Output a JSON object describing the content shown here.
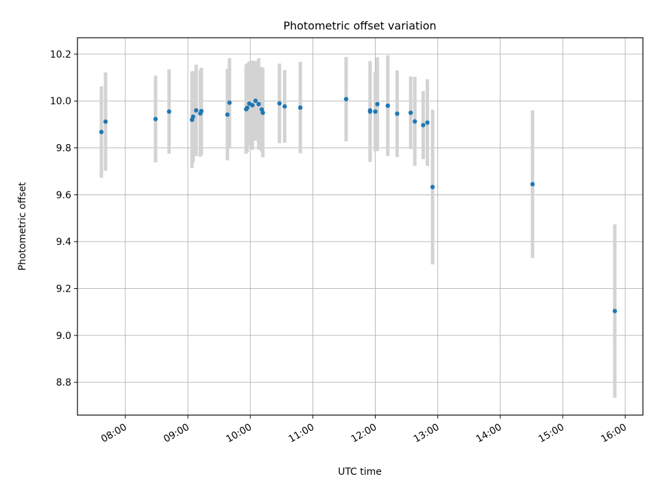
{
  "chart_data": {
    "type": "scatter",
    "title": "Photometric offset variation",
    "xlabel": "UTC time",
    "ylabel": "Photometric offset",
    "x_is_time": true,
    "xlim": [
      "07:14",
      "16:17"
    ],
    "ylim": [
      8.66,
      10.27
    ],
    "x_ticks": [
      "08:00",
      "09:00",
      "10:00",
      "11:00",
      "12:00",
      "13:00",
      "14:00",
      "15:00",
      "16:00"
    ],
    "y_ticks": [
      "8.8",
      "9.0",
      "9.2",
      "9.4",
      "9.6",
      "9.8",
      "10.0",
      "10.2"
    ],
    "grid": true,
    "marker_color": "#1f77b4",
    "errorbar_color": "#d3d3d3",
    "points": [
      {
        "time": "07:37",
        "y": 9.868,
        "err": 0.195
      },
      {
        "time": "07:41",
        "y": 9.912,
        "err": 0.21
      },
      {
        "time": "08:29",
        "y": 9.923,
        "err": 0.185
      },
      {
        "time": "08:42",
        "y": 9.955,
        "err": 0.18
      },
      {
        "time": "09:04",
        "y": 9.92,
        "err": 0.205
      },
      {
        "time": "09:05",
        "y": 9.933,
        "err": 0.195
      },
      {
        "time": "09:08",
        "y": 9.96,
        "err": 0.195
      },
      {
        "time": "09:12",
        "y": 9.947,
        "err": 0.185
      },
      {
        "time": "09:13",
        "y": 9.957,
        "err": 0.185
      },
      {
        "time": "09:38",
        "y": 9.942,
        "err": 0.195
      },
      {
        "time": "09:40",
        "y": 9.993,
        "err": 0.19
      },
      {
        "time": "09:56",
        "y": 9.965,
        "err": 0.19
      },
      {
        "time": "09:57",
        "y": 9.971,
        "err": 0.19
      },
      {
        "time": "09:59",
        "y": 9.989,
        "err": 0.18
      },
      {
        "time": "10:02",
        "y": 9.982,
        "err": 0.19
      },
      {
        "time": "10:05",
        "y": 10.001,
        "err": 0.17
      },
      {
        "time": "10:08",
        "y": 9.987,
        "err": 0.195
      },
      {
        "time": "10:11",
        "y": 9.964,
        "err": 0.18
      },
      {
        "time": "10:12",
        "y": 9.95,
        "err": 0.19
      },
      {
        "time": "10:28",
        "y": 9.99,
        "err": 0.17
      },
      {
        "time": "10:33",
        "y": 9.977,
        "err": 0.155
      },
      {
        "time": "10:48",
        "y": 9.972,
        "err": 0.195
      },
      {
        "time": "11:32",
        "y": 10.008,
        "err": 0.18
      },
      {
        "time": "11:55",
        "y": 9.955,
        "err": 0.215
      },
      {
        "time": "11:55",
        "y": 9.96,
        "err": 0.2
      },
      {
        "time": "12:00",
        "y": 9.955,
        "err": 0.17
      },
      {
        "time": "12:02",
        "y": 9.987,
        "err": 0.2
      },
      {
        "time": "12:12",
        "y": 9.98,
        "err": 0.215
      },
      {
        "time": "12:21",
        "y": 9.946,
        "err": 0.185
      },
      {
        "time": "12:34",
        "y": 9.95,
        "err": 0.155
      },
      {
        "time": "12:38",
        "y": 9.913,
        "err": 0.19
      },
      {
        "time": "12:46",
        "y": 9.897,
        "err": 0.145
      },
      {
        "time": "12:50",
        "y": 9.908,
        "err": 0.185
      },
      {
        "time": "12:55",
        "y": 9.633,
        "err": 0.33
      },
      {
        "time": "14:31",
        "y": 9.645,
        "err": 0.315
      },
      {
        "time": "15:50",
        "y": 9.104,
        "err": 0.37
      }
    ]
  }
}
